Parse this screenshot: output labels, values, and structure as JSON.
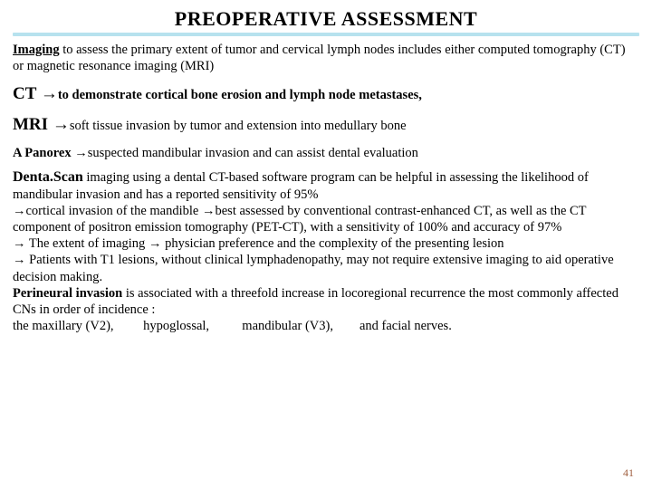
{
  "title": "PREOPERATIVE ASSESSMENT",
  "intro_lead": "Imaging",
  "intro_rest": " to assess the primary extent of tumor and cervical lymph nodes includes either computed tomography (CT) or magnetic resonance imaging (MRI)",
  "ct_label": "CT ",
  "ct_arrow": "→",
  "ct_text": "to demonstrate cortical bone erosion and lymph node metastases,",
  "mri_label": "MRI ",
  "mri_arrow": "→",
  "mri_text": "soft tissue invasion by tumor and extension into medullary bone",
  "panorex_label": "A Panorex ",
  "panorex_arrow": "→",
  "panorex_text": "suspected mandibular invasion and can assist dental evaluation",
  "denta_label": " Denta.Scan",
  "denta_text1": " imaging using a dental CT-based software program can be helpful in assessing the likelihood of mandibular invasion and has a reported sensitivity of 95%",
  "denta_arrow1": "→",
  "denta_text2": "cortical invasion of the mandible ",
  "denta_arrow2": "→",
  "denta_text3": "best assessed by conventional contrast-enhanced CT,   as well as the CT component of positron emission tomography (PET-CT), with a sensitivity of 100% and accuracy of 97%",
  "extent_arrow1": "→",
  "extent_text1": " The extent of imaging ",
  "extent_arrow2": "→",
  "extent_text2": " physician preference and the complexity of the presenting lesion",
  "t1_arrow": "→",
  "t1_text": " Patients with T1 lesions, without clinical lymphadenopathy, may not require extensive imaging to aid operative decision making.",
  "peri_label": "Perineural invasion",
  "peri_text": " is associated with a threefold increase in locoregional recurrence the most commonly affected CNs in order of incidence :",
  "nerves": "the maxillary (V2),         hypoglossal,          mandibular (V3),        and facial nerves.",
  "page": "41",
  "colors": {
    "text": "#000000",
    "bg": "#ffffff",
    "wave": "#6fc4dd",
    "pagenum": "#a06040"
  }
}
